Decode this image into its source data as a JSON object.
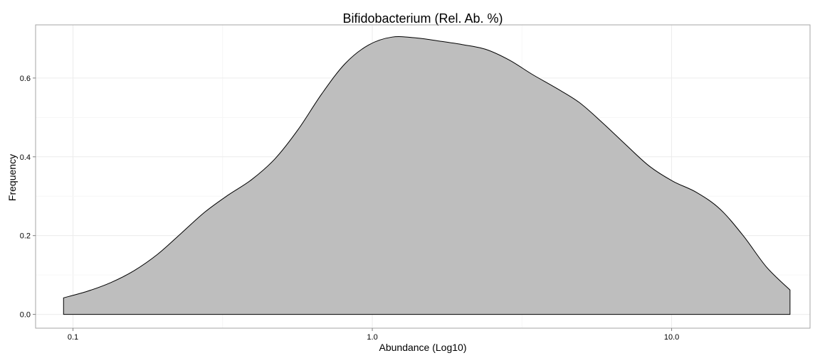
{
  "chart_data": {
    "type": "area",
    "title": "Bifidobacterium (Rel. Ab. %)",
    "xlabel": "Abundance (Log10)",
    "ylabel": "Frequency",
    "x_scale": "log10",
    "xlim": [
      0.075,
      29
    ],
    "ylim": [
      -0.035,
      0.735
    ],
    "x_ticks": [
      {
        "value": 0.1,
        "label": "0.1"
      },
      {
        "value": 1.0,
        "label": "1.0"
      },
      {
        "value": 10.0,
        "label": "10.0"
      }
    ],
    "y_ticks": [
      {
        "value": 0.0,
        "label": "0.0"
      },
      {
        "value": 0.2,
        "label": "0.2"
      },
      {
        "value": 0.4,
        "label": "0.4"
      },
      {
        "value": 0.6,
        "label": "0.6"
      }
    ],
    "grid": true,
    "fill_color": "#bebebe",
    "line_color": "#000000",
    "series": [
      {
        "x": [
          0.093,
          0.112,
          0.134,
          0.16,
          0.192,
          0.23,
          0.276,
          0.33,
          0.395,
          0.473,
          0.566,
          0.678,
          0.812,
          0.972,
          1.164,
          1.394,
          1.668,
          1.997,
          2.391,
          2.863,
          3.428,
          4.105,
          4.915,
          5.885,
          7.046,
          8.437,
          10.1,
          12.09,
          14.48,
          17.34,
          20.76,
          24.86
        ],
        "y": [
          0.042,
          0.059,
          0.081,
          0.111,
          0.153,
          0.206,
          0.26,
          0.303,
          0.342,
          0.395,
          0.47,
          0.56,
          0.637,
          0.684,
          0.704,
          0.702,
          0.694,
          0.685,
          0.673,
          0.646,
          0.609,
          0.575,
          0.538,
          0.486,
          0.43,
          0.376,
          0.338,
          0.31,
          0.268,
          0.2,
          0.12,
          0.062
        ]
      }
    ]
  }
}
